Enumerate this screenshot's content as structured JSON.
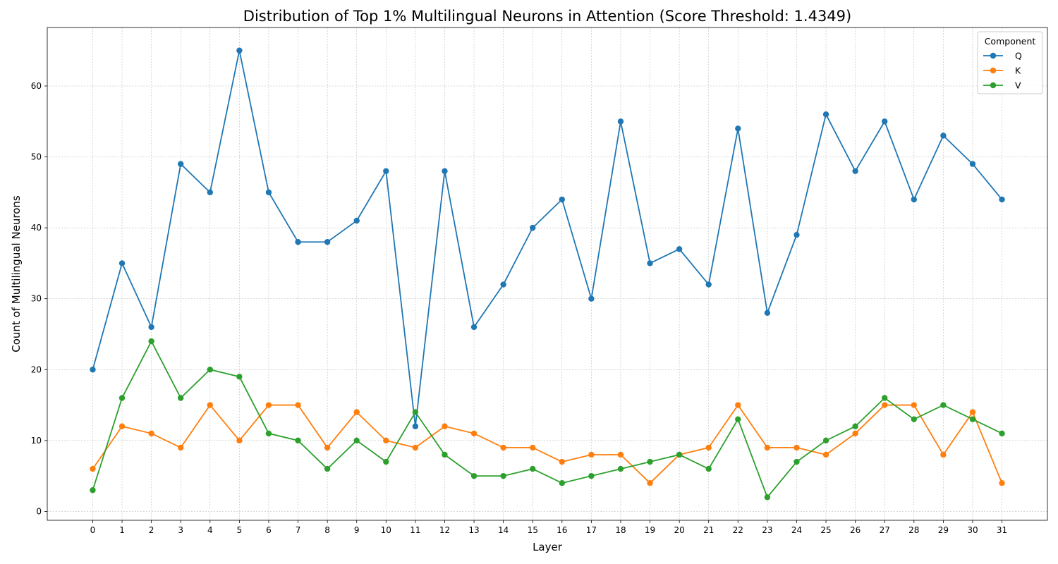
{
  "chart_data": {
    "type": "line",
    "title": "Distribution of Top 1% Multilingual Neurons in Attention (Score Threshold: 1.4349)",
    "xlabel": "Layer",
    "ylabel": "Count of Multilingual Neurons",
    "x": [
      0,
      1,
      2,
      3,
      4,
      5,
      6,
      7,
      8,
      9,
      10,
      11,
      12,
      13,
      14,
      15,
      16,
      17,
      18,
      19,
      20,
      21,
      22,
      23,
      24,
      25,
      26,
      27,
      28,
      29,
      30,
      31
    ],
    "xlim": [
      -1.55,
      32.55
    ],
    "ylim": [
      -1.25,
      68.25
    ],
    "yticks": [
      0,
      10,
      20,
      30,
      40,
      50,
      60
    ],
    "grid": true,
    "legend": {
      "title": "Component",
      "placement": "top-right"
    },
    "series": [
      {
        "name": "Q",
        "color": "#1f77b4",
        "values": [
          20,
          35,
          26,
          49,
          45,
          65,
          45,
          38,
          38,
          41,
          48,
          12,
          48,
          26,
          32,
          40,
          44,
          30,
          55,
          35,
          37,
          32,
          54,
          28,
          39,
          56,
          48,
          55,
          44,
          53,
          49,
          44
        ]
      },
      {
        "name": "K",
        "color": "#ff7f0e",
        "values": [
          6,
          12,
          11,
          9,
          15,
          10,
          15,
          15,
          9,
          14,
          10,
          9,
          12,
          11,
          9,
          9,
          7,
          8,
          8,
          4,
          8,
          9,
          15,
          9,
          9,
          8,
          11,
          15,
          15,
          8,
          14,
          4
        ]
      },
      {
        "name": "V",
        "color": "#2ca02c",
        "values": [
          3,
          16,
          24,
          16,
          20,
          19,
          11,
          10,
          6,
          10,
          7,
          14,
          8,
          5,
          5,
          6,
          4,
          5,
          6,
          7,
          8,
          6,
          13,
          2,
          7,
          10,
          12,
          16,
          13,
          15,
          13,
          11
        ]
      }
    ]
  }
}
